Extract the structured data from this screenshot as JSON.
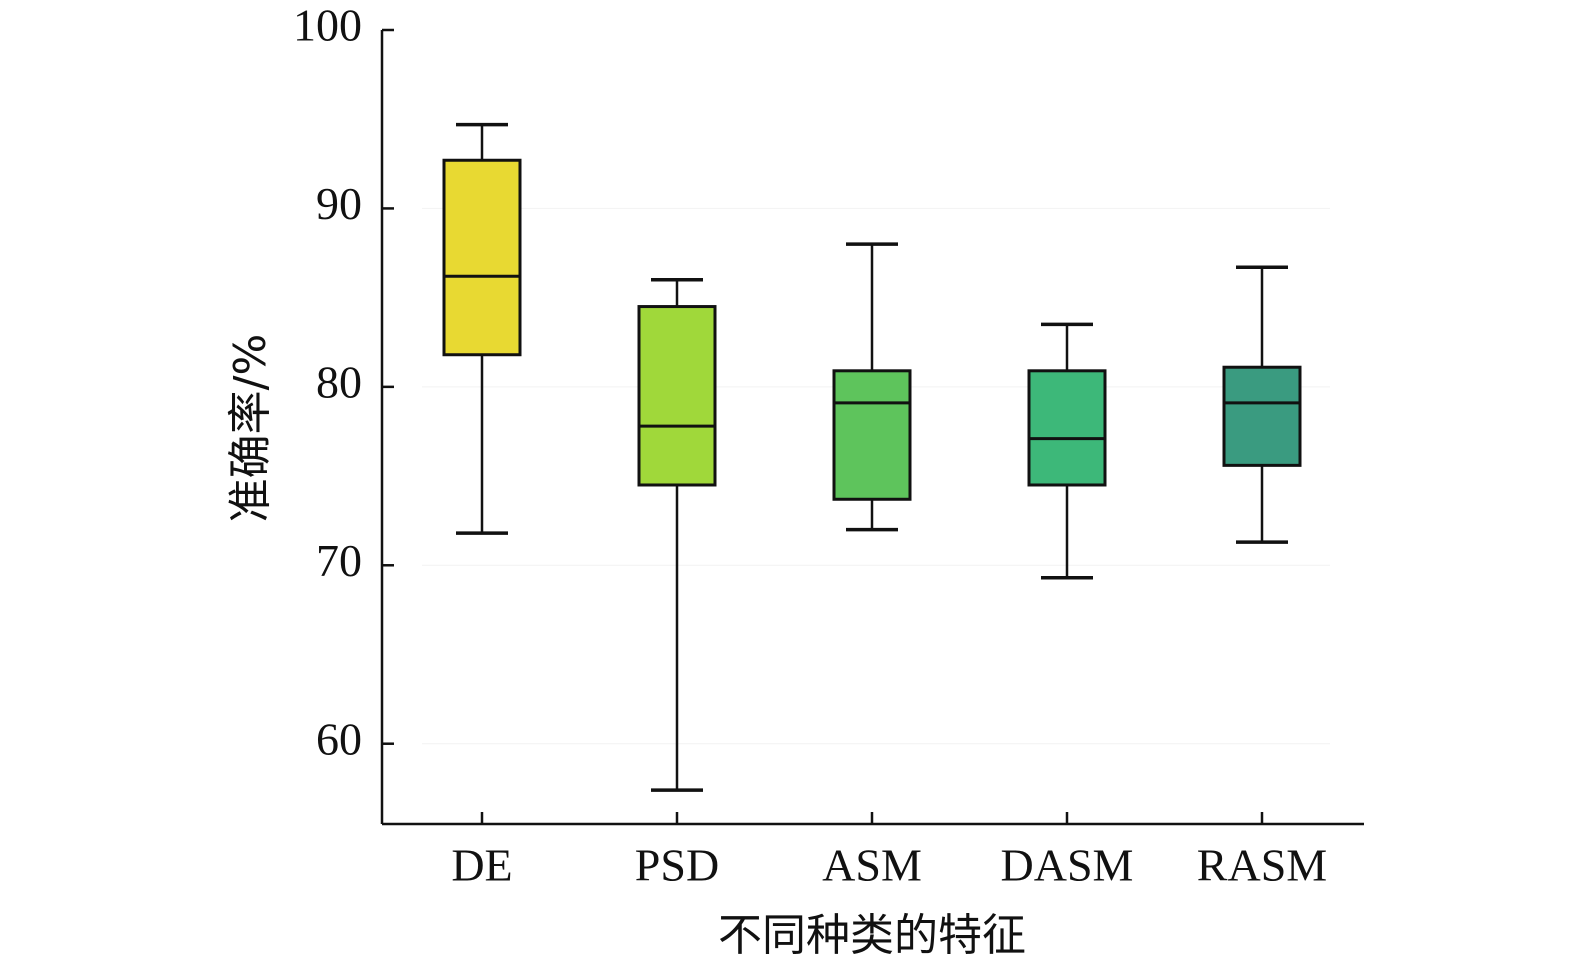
{
  "chart_data": {
    "type": "boxplot",
    "xlabel": "不同种类的特征",
    "ylabel": "准确率/%",
    "ylim": [
      55.5,
      100
    ],
    "yticks": [
      60,
      70,
      80,
      90,
      100
    ],
    "grid": false,
    "categories": [
      "DE",
      "PSD",
      "ASM",
      "DASM",
      "RASM"
    ],
    "boxes": [
      {
        "name": "DE",
        "min": 71.8,
        "q1": 81.8,
        "median": 86.2,
        "q3": 92.7,
        "max": 94.7,
        "color": "#e8d932"
      },
      {
        "name": "PSD",
        "min": 57.4,
        "q1": 74.5,
        "median": 77.8,
        "q3": 84.5,
        "max": 86.0,
        "color": "#a0d83a"
      },
      {
        "name": "ASM",
        "min": 72.0,
        "q1": 73.7,
        "median": 79.1,
        "q3": 80.9,
        "max": 88.0,
        "color": "#5ec45c"
      },
      {
        "name": "DASM",
        "min": 69.3,
        "q1": 74.5,
        "median": 77.1,
        "q3": 80.9,
        "max": 83.5,
        "color": "#3db879"
      },
      {
        "name": "RASM",
        "min": 71.3,
        "q1": 75.6,
        "median": 79.1,
        "q3": 81.1,
        "max": 86.7,
        "color": "#3a9b80"
      }
    ]
  }
}
